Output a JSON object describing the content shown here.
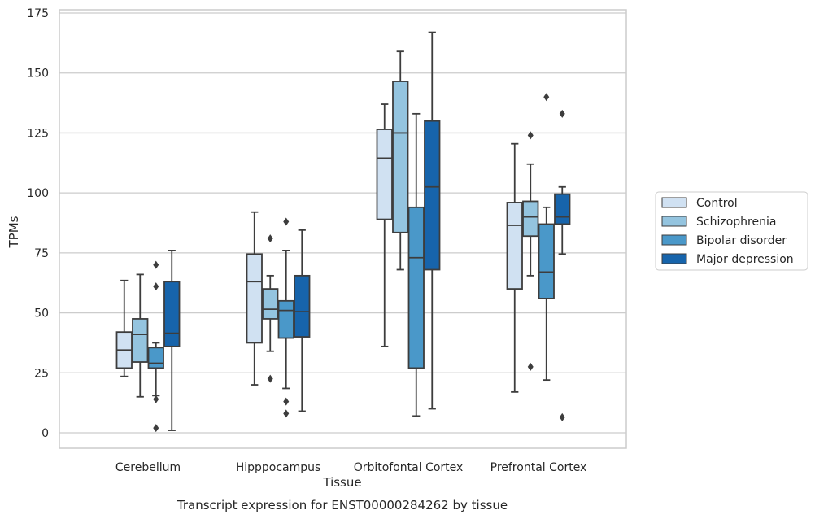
{
  "chart_data": {
    "type": "boxplot",
    "title": "Transcript expression for ENST00000284262 by tissue",
    "xlabel": "Tissue",
    "ylabel": "TPMs",
    "ylim": [
      -7,
      176
    ],
    "yticks": [
      0,
      25,
      50,
      75,
      100,
      125,
      150,
      175
    ],
    "grid": "horizontal",
    "legend_position": "right",
    "categories": [
      "Cerebellum",
      "Hipppocampus",
      "Orbitofontal Cortex",
      "Prefrontal Cortex"
    ],
    "series": [
      {
        "name": "Control",
        "color": "#d0e1f2",
        "boxes": [
          {
            "whisker_low": 23.5,
            "q1": 27,
            "median": 34.5,
            "q3": 42,
            "whisker_high": 63.5,
            "outliers": []
          },
          {
            "whisker_low": 20,
            "q1": 37.5,
            "median": 63,
            "q3": 74.5,
            "whisker_high": 92,
            "outliers": []
          },
          {
            "whisker_low": 36,
            "q1": 89,
            "median": 114.5,
            "q3": 126.5,
            "whisker_high": 137,
            "outliers": []
          },
          {
            "whisker_low": 17,
            "q1": 60,
            "median": 86.5,
            "q3": 96,
            "whisker_high": 120.5,
            "outliers": []
          }
        ]
      },
      {
        "name": "Schizophrenia",
        "color": "#94c4df",
        "boxes": [
          {
            "whisker_low": 15,
            "q1": 29.5,
            "median": 41,
            "q3": 47.5,
            "whisker_high": 66,
            "outliers": []
          },
          {
            "whisker_low": 34,
            "q1": 47.5,
            "median": 51.5,
            "q3": 60,
            "whisker_high": 65.5,
            "outliers": [
              81,
              22.5
            ]
          },
          {
            "whisker_low": 68,
            "q1": 83.5,
            "median": 125,
            "q3": 146.5,
            "whisker_high": 159,
            "outliers": []
          },
          {
            "whisker_low": 65.5,
            "q1": 82,
            "median": 90,
            "q3": 96.5,
            "whisker_high": 112,
            "outliers": [
              124,
              27.5
            ]
          }
        ]
      },
      {
        "name": "Bipolar disorder",
        "color": "#4a98c9",
        "boxes": [
          {
            "whisker_low": 15.5,
            "q1": 27,
            "median": 29,
            "q3": 35.5,
            "whisker_high": 37.5,
            "outliers": [
              70,
              61,
              14,
              2
            ]
          },
          {
            "whisker_low": 18.5,
            "q1": 39.5,
            "median": 51,
            "q3": 55,
            "whisker_high": 76,
            "outliers": [
              88,
              13,
              8
            ]
          },
          {
            "whisker_low": 7,
            "q1": 27,
            "median": 73,
            "q3": 94,
            "whisker_high": 133,
            "outliers": []
          },
          {
            "whisker_low": 22,
            "q1": 56,
            "median": 67,
            "q3": 87,
            "whisker_high": 94,
            "outliers": [
              140
            ]
          }
        ]
      },
      {
        "name": "Major depression",
        "color": "#1764ab",
        "boxes": [
          {
            "whisker_low": 1,
            "q1": 36,
            "median": 41.5,
            "q3": 63,
            "whisker_high": 76,
            "outliers": []
          },
          {
            "whisker_low": 9,
            "q1": 40,
            "median": 50.5,
            "q3": 65.5,
            "whisker_high": 84.5,
            "outliers": []
          },
          {
            "whisker_low": 10,
            "q1": 68,
            "median": 102.5,
            "q3": 130,
            "whisker_high": 167,
            "outliers": []
          },
          {
            "whisker_low": 74.5,
            "q1": 87,
            "median": 90,
            "q3": 99.5,
            "whisker_high": 102.5,
            "outliers": [
              133,
              6.5
            ]
          }
        ]
      }
    ]
  }
}
